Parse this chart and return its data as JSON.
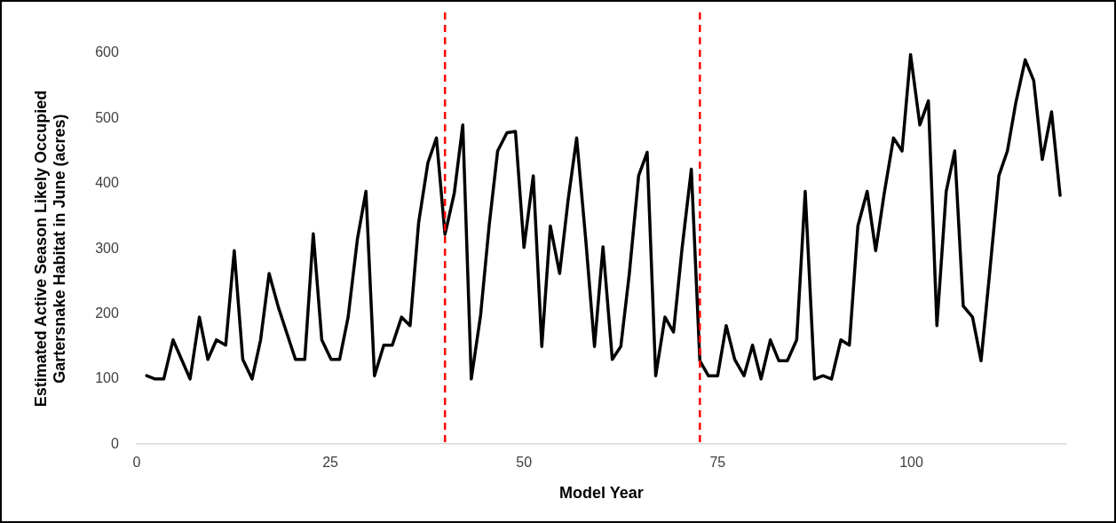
{
  "chart_data": {
    "type": "line",
    "xlabel": "Model Year",
    "ylabel": "Estimated Active Season Likely Occupied Gartersnake Habitat in June (acres)",
    "x": [
      1.3,
      2.4,
      3.5,
      4.7,
      5.8,
      6.9,
      8.1,
      9.2,
      10.3,
      11.5,
      12.6,
      13.7,
      14.9,
      16.0,
      17.1,
      18.3,
      19.4,
      20.5,
      21.7,
      22.8,
      23.9,
      25.1,
      26.2,
      27.3,
      28.5,
      29.6,
      30.7,
      31.9,
      33.0,
      34.2,
      35.3,
      36.4,
      37.6,
      38.7,
      39.8,
      41.0,
      42.1,
      43.2,
      44.4,
      45.5,
      46.6,
      47.8,
      48.9,
      50.0,
      51.2,
      52.3,
      53.4,
      54.6,
      55.7,
      56.8,
      58.0,
      59.1,
      60.2,
      61.4,
      62.5,
      63.6,
      64.8,
      65.9,
      67.0,
      68.2,
      69.3,
      70.4,
      71.6,
      72.7,
      73.8,
      75.0,
      76.1,
      77.2,
      78.4,
      79.5,
      80.6,
      81.8,
      82.9,
      84.0,
      85.2,
      86.3,
      87.5,
      88.6,
      89.7,
      90.9,
      92.0,
      93.1,
      94.3,
      95.4,
      96.5,
      97.7,
      98.8,
      99.9,
      101.1,
      102.2,
      103.3,
      104.5,
      105.6,
      106.7,
      107.9,
      109.0,
      110.1,
      111.3,
      112.4,
      113.5,
      114.7,
      115.8,
      116.9,
      118.1,
      119.2
    ],
    "series": [
      {
        "color": "#000000",
        "values": [
          105,
          100,
          100,
          160,
          130,
          100,
          195,
          130,
          160,
          152,
          297,
          130,
          100,
          160,
          262,
          210,
          170,
          130,
          130,
          323,
          160,
          130,
          130,
          195,
          315,
          388,
          105,
          152,
          152,
          195,
          182,
          340,
          432,
          470,
          322,
          385,
          490,
          100,
          198,
          335,
          450,
          478,
          480,
          302,
          412,
          150,
          335,
          262,
          375,
          470,
          310,
          150,
          303,
          130,
          150,
          262,
          412,
          448,
          105,
          195,
          172,
          300,
          422,
          128,
          105,
          105,
          182,
          130,
          105,
          152,
          100,
          160,
          128,
          128,
          160,
          388,
          100,
          105,
          100,
          160,
          152,
          335,
          388,
          297,
          385,
          470,
          450,
          598,
          490,
          527,
          182,
          388,
          450,
          212,
          195,
          128,
          262,
          412,
          450,
          525,
          590,
          558,
          437,
          510,
          382
        ]
      }
    ],
    "xlim": [
      0,
      120
    ],
    "xticks": [
      0,
      25,
      50,
      75,
      100
    ],
    "ylim": [
      0,
      600
    ],
    "yticks": [
      0,
      100,
      200,
      300,
      400,
      500,
      600
    ],
    "ref_lines": [
      {
        "axis": "x",
        "value": 39.8,
        "color": "#ff0000",
        "line_style": "dashed"
      },
      {
        "axis": "x",
        "value": 72.7,
        "color": "#ff0000",
        "line_style": "dashed"
      }
    ],
    "grid": false,
    "legend": false,
    "marker": "none",
    "line_style": "solid"
  }
}
